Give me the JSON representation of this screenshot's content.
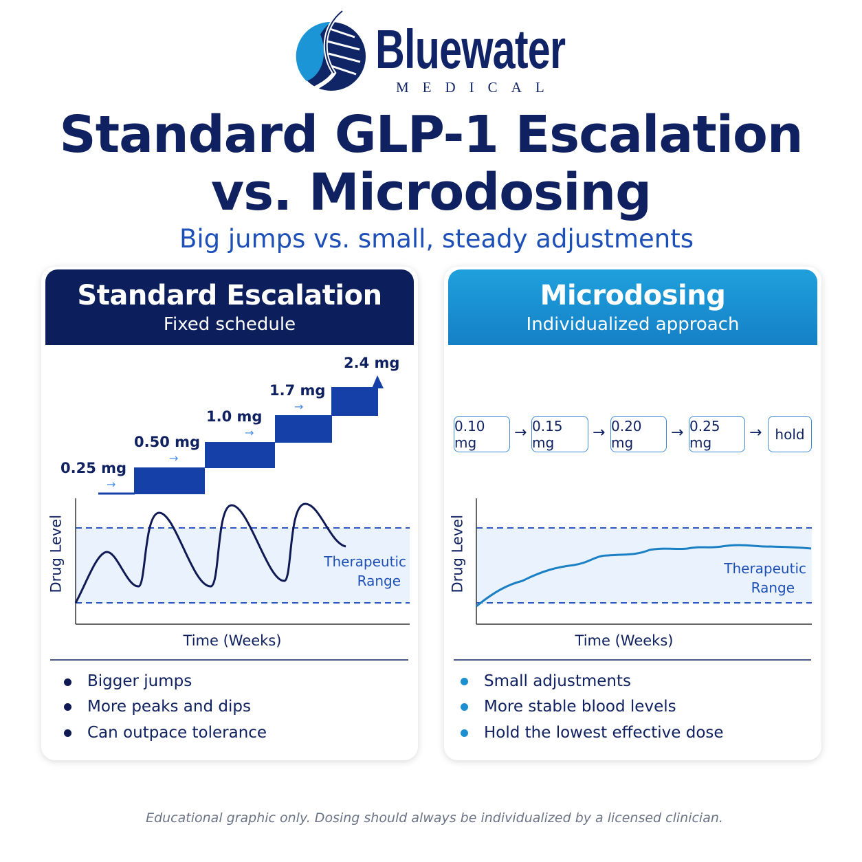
{
  "brand": {
    "name": "Bluewater",
    "tagline": "MEDICAL"
  },
  "title": {
    "line1": "Standard GLP-1 Escalation",
    "line2": "vs. Microdosing"
  },
  "subtitle": "Big jumps vs. small, steady adjustments",
  "colors": {
    "navy": "#0c1f5c",
    "step_blue": "#1440a8",
    "sky": "#1b8fd0",
    "band": "#eaf2fd"
  },
  "standard": {
    "title": "Standard Escalation",
    "subtitle": "Fixed schedule",
    "steps": [
      "0.25 mg",
      "0.50 mg",
      "1.0 mg",
      "1.7 mg",
      "2.4 mg"
    ],
    "chart": {
      "ylabel": "Drug Level",
      "xlabel": "Time (Weeks)",
      "band_label_1": "Therapeutic",
      "band_label_2": "Range"
    },
    "bullets": [
      "Bigger jumps",
      "More peaks and dips",
      "Can outpace tolerance"
    ]
  },
  "micro": {
    "title": "Microdosing",
    "subtitle": "Individualized approach",
    "steps": [
      "0.10 mg",
      "0.15 mg",
      "0.20 mg",
      "0.25 mg",
      "hold"
    ],
    "arrow": "→",
    "chart": {
      "ylabel": "Drug Level",
      "xlabel": "Time (Weeks)",
      "band_label_1": "Therapeutic",
      "band_label_2": "Range"
    },
    "bullets": [
      "Small adjustments",
      "More stable blood levels",
      "Hold the lowest effective dose"
    ]
  },
  "footer": "Educational graphic only. Dosing should always be individualized by a licensed clinician."
}
